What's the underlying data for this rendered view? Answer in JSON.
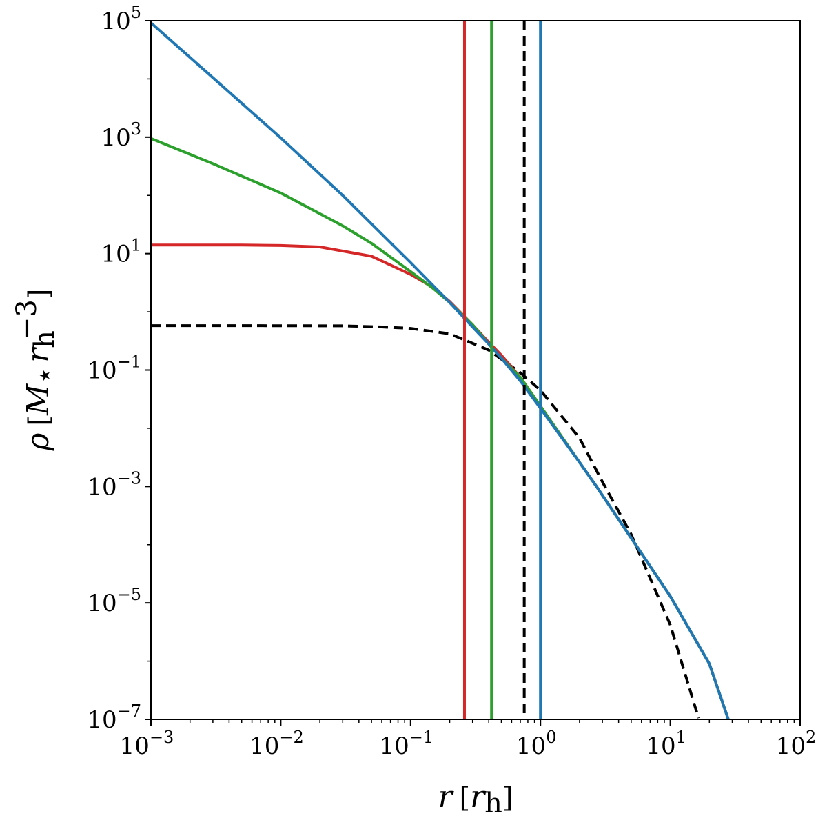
{
  "chart_data": {
    "type": "line",
    "title": "",
    "xlabel": "r [r_h]",
    "ylabel": "ρ [M⋆ r_h^-3]",
    "x_scale": "log",
    "y_scale": "log",
    "xlim": [
      0.001,
      100
    ],
    "ylim": [
      1e-07,
      100000
    ],
    "grid": false,
    "legend": "none",
    "x_ticks": [
      {
        "value": 0.001,
        "base": "10",
        "exp": "−3"
      },
      {
        "value": 0.01,
        "base": "10",
        "exp": "−2"
      },
      {
        "value": 0.1,
        "base": "10",
        "exp": "−1"
      },
      {
        "value": 1,
        "base": "10",
        "exp": "0"
      },
      {
        "value": 10,
        "base": "10",
        "exp": "1"
      },
      {
        "value": 100,
        "base": "10",
        "exp": "2"
      }
    ],
    "y_ticks": [
      {
        "value": 1e-07,
        "base": "10",
        "exp": "−7"
      },
      {
        "value": 1e-05,
        "base": "10",
        "exp": "−5"
      },
      {
        "value": 0.001,
        "base": "10",
        "exp": "−3"
      },
      {
        "value": 0.1,
        "base": "10",
        "exp": "−1"
      },
      {
        "value": 10,
        "base": "10",
        "exp": "1"
      },
      {
        "value": 1000,
        "base": "10",
        "exp": "3"
      },
      {
        "value": 100000,
        "base": "10",
        "exp": "5"
      }
    ],
    "series": [
      {
        "color": "#000000",
        "dash": "dashed",
        "x": [
          0.001,
          0.01,
          0.03,
          0.06,
          0.1,
          0.2,
          0.4,
          0.7,
          1,
          2,
          3,
          5,
          10,
          16.5
        ],
        "y": [
          0.58,
          0.578,
          0.575,
          0.55,
          0.52,
          0.42,
          0.22,
          0.09,
          0.045,
          0.0068,
          0.0012,
          0.00015,
          4.2e-06,
          1.05e-07
        ]
      },
      {
        "color": "#d62728",
        "dash": "solid",
        "x": [
          0.001,
          0.005,
          0.01,
          0.02,
          0.05,
          0.1,
          0.15,
          0.2,
          0.3,
          0.4,
          0.5,
          0.7,
          1,
          2,
          2.7,
          5,
          10,
          20,
          28
        ],
        "y": [
          14,
          14,
          13.8,
          13,
          9,
          4.4,
          2.6,
          1.5,
          0.6,
          0.3,
          0.18,
          0.075,
          0.024,
          0.0026,
          0.001,
          0.00013,
          1.3e-05,
          9e-07,
          1e-07
        ]
      },
      {
        "color": "#2ca02c",
        "dash": "solid",
        "x": [
          0.001,
          0.003,
          0.01,
          0.03,
          0.05,
          0.1,
          0.15,
          0.2,
          0.3,
          0.4,
          0.5,
          0.7,
          1,
          2,
          2.7,
          5,
          10,
          20,
          28
        ],
        "y": [
          950,
          350,
          110,
          30,
          15,
          4.9,
          2.5,
          1.45,
          0.6,
          0.28,
          0.16,
          0.075,
          0.024,
          0.0026,
          0.001,
          0.00013,
          1.3e-05,
          9e-07,
          1e-07
        ]
      },
      {
        "color": "#1f77b4",
        "dash": "solid",
        "x": [
          0.001,
          0.003,
          0.01,
          0.03,
          0.1,
          0.2,
          0.3,
          0.4,
          0.5,
          0.7,
          1,
          2,
          2.7,
          5,
          10,
          20,
          28
        ],
        "y": [
          92000,
          10500,
          970,
          100,
          7,
          1.45,
          0.55,
          0.28,
          0.16,
          0.065,
          0.022,
          0.0026,
          0.001,
          0.00013,
          1.3e-05,
          9e-07,
          1e-07
        ]
      }
    ],
    "vlines": [
      {
        "x": 0.26,
        "color": "#d62728",
        "dash": "solid"
      },
      {
        "x": 0.42,
        "color": "#2ca02c",
        "dash": "solid"
      },
      {
        "x": 0.75,
        "color": "#000000",
        "dash": "dashed"
      },
      {
        "x": 1.0,
        "color": "#1f77b4",
        "dash": "solid"
      }
    ]
  }
}
